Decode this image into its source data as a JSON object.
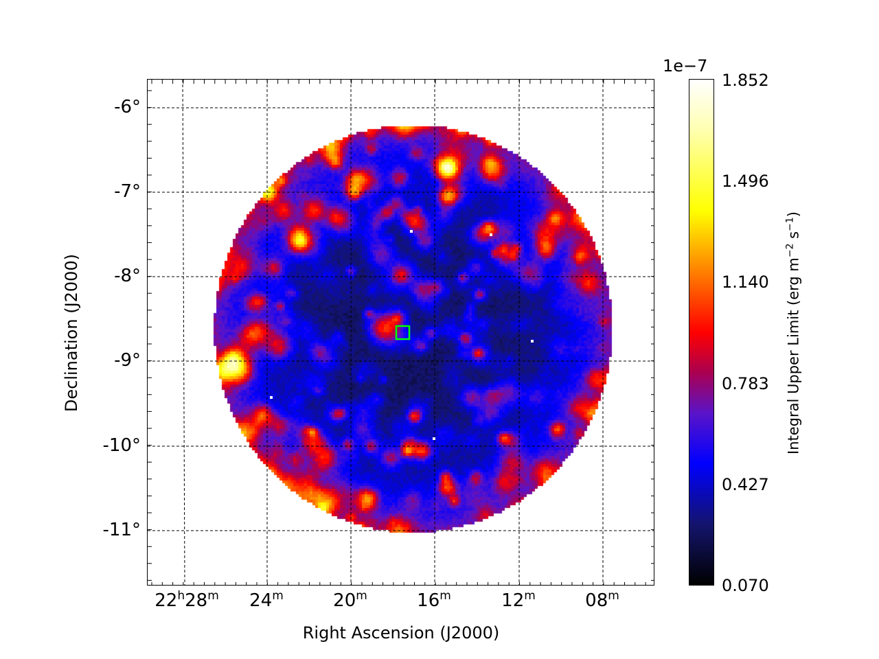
{
  "chart_data": {
    "type": "heatmap",
    "title": "",
    "xlabel": "Right Ascension (J2000)",
    "ylabel": "Declination (J2000)",
    "x_ticks": [
      {
        "h": "22",
        "hu": "h",
        "m": "28",
        "mu": "m"
      },
      {
        "h": "",
        "hu": "",
        "m": "24",
        "mu": "m"
      },
      {
        "h": "",
        "hu": "",
        "m": "20",
        "mu": "m"
      },
      {
        "h": "",
        "hu": "",
        "m": "16",
        "mu": "m"
      },
      {
        "h": "",
        "hu": "",
        "m": "12",
        "mu": "m"
      },
      {
        "h": "",
        "hu": "",
        "m": "08",
        "mu": "m"
      }
    ],
    "y_ticks": [
      "-6°",
      "-7°",
      "-8°",
      "-9°",
      "-10°",
      "-11°"
    ],
    "colorbar": {
      "label": "Integral Upper Limit (erg m",
      "label_exp1": "−2",
      "label_mid": " s",
      "label_exp2": "−1",
      "label_end": ")",
      "offset": "1e−7",
      "ticks": [
        "1.852",
        "1.496",
        "1.140",
        "0.783",
        "0.427",
        "0.070"
      ],
      "range": [
        0.07,
        1.852
      ],
      "colormap": [
        "#000000",
        "#0000ff",
        "#aa0050",
        "#ff0000",
        "#ff8000",
        "#ffff00",
        "#ffffff"
      ]
    },
    "grid": true,
    "marker_color": "#00ff00"
  }
}
